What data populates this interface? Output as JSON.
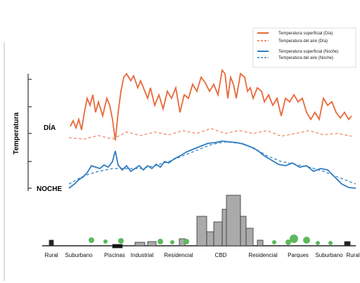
{
  "y_axis_label": "Temperatura",
  "labels": {
    "day": "DÍA",
    "night": "NOCHE"
  },
  "legend": [
    "Temperatura superficial (Día)",
    "Temperatura del aire (Día)",
    "Temperatura superficial (Noche)",
    "Temperatura del aire (Noche)"
  ],
  "zones": [
    "Rural",
    "Suburbano",
    "Piscinas",
    "Industrial",
    "Residencial",
    "CBD",
    "Residencial",
    "Parques",
    "Suburbano",
    "Rural"
  ]
}
